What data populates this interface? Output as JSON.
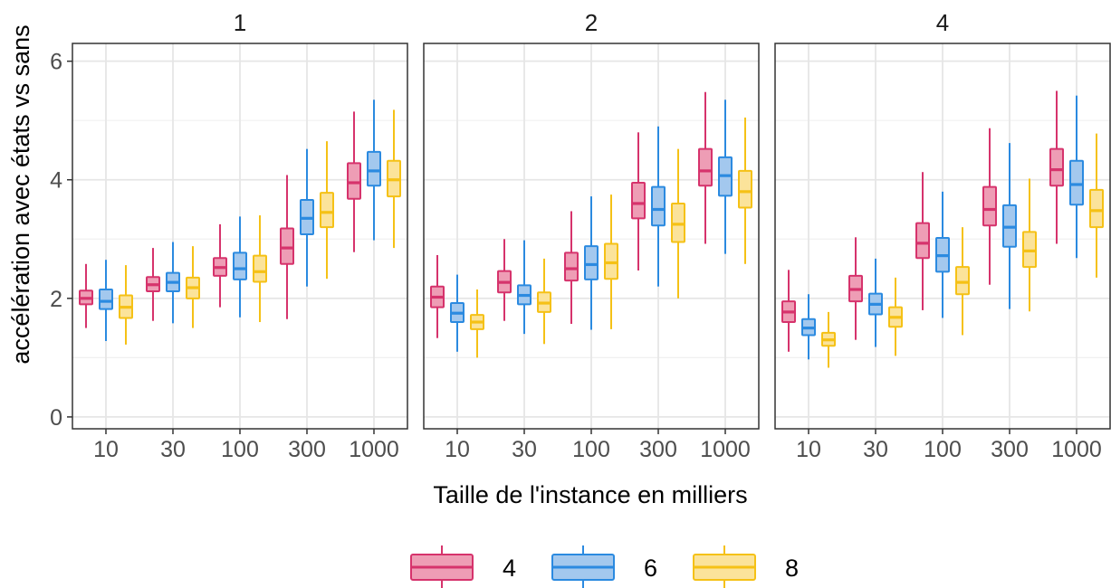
{
  "chart_data": {
    "type": "boxplot",
    "xlabel": "Taille de l'instance en milliers",
    "ylabel": "accélération avec états vs sans",
    "ylim": [
      -0.2,
      6.3
    ],
    "y_ticks": [
      0,
      2,
      4,
      6
    ],
    "categories": [
      "10",
      "30",
      "100",
      "300",
      "1000"
    ],
    "legend": {
      "position": "bottom",
      "entries": [
        "4",
        "6",
        "8"
      ]
    },
    "series_colors": {
      "4": "#d6336c",
      "6": "#2b8ae0",
      "8": "#f5c116"
    },
    "series_fills": {
      "4": "#ee9db5",
      "6": "#a3c8ee",
      "8": "#fbe39a"
    },
    "facets": [
      {
        "title": "1",
        "series": [
          {
            "name": "4",
            "boxes": [
              {
                "min": 1.5,
                "q1": 1.9,
                "median": 2.0,
                "q3": 2.13,
                "max": 2.58
              },
              {
                "min": 1.62,
                "q1": 2.12,
                "median": 2.23,
                "q3": 2.36,
                "max": 2.85
              },
              {
                "min": 1.85,
                "q1": 2.38,
                "median": 2.52,
                "q3": 2.68,
                "max": 3.25
              },
              {
                "min": 1.65,
                "q1": 2.58,
                "median": 2.85,
                "q3": 3.18,
                "max": 4.08
              },
              {
                "min": 2.78,
                "q1": 3.68,
                "median": 3.95,
                "q3": 4.28,
                "max": 5.15
              }
            ]
          },
          {
            "name": "6",
            "boxes": [
              {
                "min": 1.28,
                "q1": 1.82,
                "median": 1.95,
                "q3": 2.15,
                "max": 2.65
              },
              {
                "min": 1.58,
                "q1": 2.12,
                "median": 2.27,
                "q3": 2.43,
                "max": 2.95
              },
              {
                "min": 1.68,
                "q1": 2.32,
                "median": 2.5,
                "q3": 2.77,
                "max": 3.38
              },
              {
                "min": 2.2,
                "q1": 3.08,
                "median": 3.35,
                "q3": 3.66,
                "max": 4.52
              },
              {
                "min": 2.98,
                "q1": 3.9,
                "median": 4.15,
                "q3": 4.47,
                "max": 5.35
              }
            ]
          },
          {
            "name": "8",
            "boxes": [
              {
                "min": 1.22,
                "q1": 1.67,
                "median": 1.85,
                "q3": 2.05,
                "max": 2.56
              },
              {
                "min": 1.5,
                "q1": 2.0,
                "median": 2.18,
                "q3": 2.35,
                "max": 2.88
              },
              {
                "min": 1.6,
                "q1": 2.28,
                "median": 2.45,
                "q3": 2.72,
                "max": 3.4
              },
              {
                "min": 2.33,
                "q1": 3.2,
                "median": 3.45,
                "q3": 3.78,
                "max": 4.65
              },
              {
                "min": 2.85,
                "q1": 3.72,
                "median": 4.0,
                "q3": 4.32,
                "max": 5.18
              }
            ]
          }
        ]
      },
      {
        "title": "2",
        "series": [
          {
            "name": "4",
            "boxes": [
              {
                "min": 1.33,
                "q1": 1.85,
                "median": 2.02,
                "q3": 2.2,
                "max": 2.73
              },
              {
                "min": 1.62,
                "q1": 2.1,
                "median": 2.27,
                "q3": 2.46,
                "max": 3.0
              },
              {
                "min": 1.57,
                "q1": 2.3,
                "median": 2.5,
                "q3": 2.77,
                "max": 3.47
              },
              {
                "min": 2.47,
                "q1": 3.35,
                "median": 3.6,
                "q3": 3.95,
                "max": 4.8
              },
              {
                "min": 2.92,
                "q1": 3.9,
                "median": 4.15,
                "q3": 4.52,
                "max": 5.48
              }
            ]
          },
          {
            "name": "6",
            "boxes": [
              {
                "min": 1.1,
                "q1": 1.6,
                "median": 1.75,
                "q3": 1.92,
                "max": 2.4
              },
              {
                "min": 1.4,
                "q1": 1.9,
                "median": 2.05,
                "q3": 2.22,
                "max": 2.98
              },
              {
                "min": 1.47,
                "q1": 2.32,
                "median": 2.57,
                "q3": 2.88,
                "max": 3.72
              },
              {
                "min": 2.2,
                "q1": 3.23,
                "median": 3.5,
                "q3": 3.88,
                "max": 4.9
              },
              {
                "min": 2.75,
                "q1": 3.73,
                "median": 4.07,
                "q3": 4.38,
                "max": 5.35
              }
            ]
          },
          {
            "name": "8",
            "boxes": [
              {
                "min": 1.0,
                "q1": 1.48,
                "median": 1.6,
                "q3": 1.72,
                "max": 2.15
              },
              {
                "min": 1.23,
                "q1": 1.77,
                "median": 1.92,
                "q3": 2.1,
                "max": 2.67
              },
              {
                "min": 1.48,
                "q1": 2.33,
                "median": 2.6,
                "q3": 2.92,
                "max": 3.75
              },
              {
                "min": 2.0,
                "q1": 2.95,
                "median": 3.25,
                "q3": 3.6,
                "max": 4.52
              },
              {
                "min": 2.58,
                "q1": 3.53,
                "median": 3.8,
                "q3": 4.15,
                "max": 5.05
              }
            ]
          }
        ]
      },
      {
        "title": "4",
        "series": [
          {
            "name": "4",
            "boxes": [
              {
                "min": 1.1,
                "q1": 1.6,
                "median": 1.77,
                "q3": 1.95,
                "max": 2.48
              },
              {
                "min": 1.3,
                "q1": 1.95,
                "median": 2.15,
                "q3": 2.38,
                "max": 3.03
              },
              {
                "min": 1.8,
                "q1": 2.68,
                "median": 2.93,
                "q3": 3.27,
                "max": 4.13
              },
              {
                "min": 2.23,
                "q1": 3.23,
                "median": 3.5,
                "q3": 3.88,
                "max": 4.87
              },
              {
                "min": 2.92,
                "q1": 3.9,
                "median": 4.17,
                "q3": 4.52,
                "max": 5.5
              }
            ]
          },
          {
            "name": "6",
            "boxes": [
              {
                "min": 0.97,
                "q1": 1.38,
                "median": 1.5,
                "q3": 1.65,
                "max": 2.07
              },
              {
                "min": 1.18,
                "q1": 1.73,
                "median": 1.9,
                "q3": 2.08,
                "max": 2.67
              },
              {
                "min": 1.67,
                "q1": 2.45,
                "median": 2.72,
                "q3": 3.02,
                "max": 3.8
              },
              {
                "min": 1.82,
                "q1": 2.87,
                "median": 3.2,
                "q3": 3.57,
                "max": 4.62
              },
              {
                "min": 2.68,
                "q1": 3.58,
                "median": 3.92,
                "q3": 4.32,
                "max": 5.42
              }
            ]
          },
          {
            "name": "8",
            "boxes": [
              {
                "min": 0.83,
                "q1": 1.2,
                "median": 1.3,
                "q3": 1.42,
                "max": 1.77
              },
              {
                "min": 1.03,
                "q1": 1.52,
                "median": 1.68,
                "q3": 1.85,
                "max": 2.35
              },
              {
                "min": 1.38,
                "q1": 2.07,
                "median": 2.27,
                "q3": 2.53,
                "max": 3.2
              },
              {
                "min": 1.78,
                "q1": 2.53,
                "median": 2.8,
                "q3": 3.12,
                "max": 4.02
              },
              {
                "min": 2.35,
                "q1": 3.2,
                "median": 3.48,
                "q3": 3.83,
                "max": 4.78
              }
            ]
          }
        ]
      }
    ]
  }
}
